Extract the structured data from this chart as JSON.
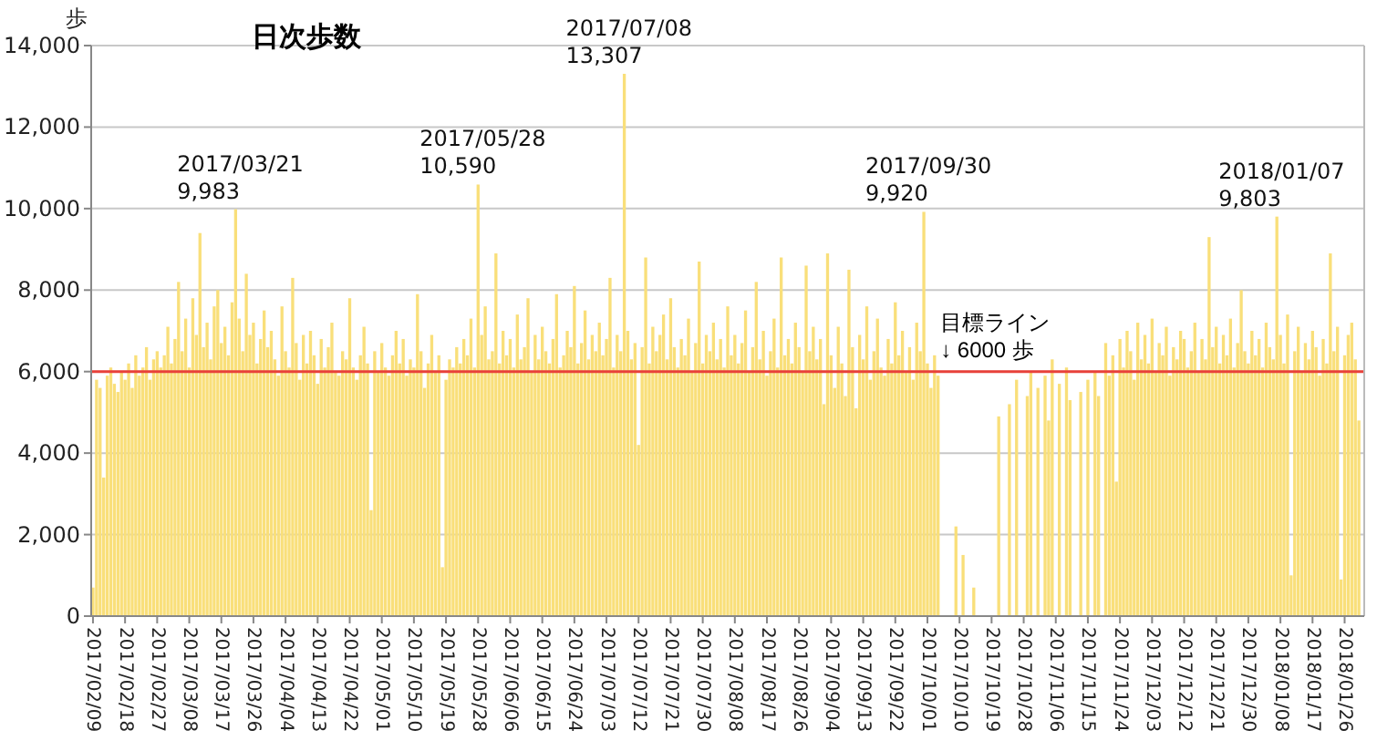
{
  "chart_data": {
    "type": "bar",
    "title": "日次歩数",
    "ylabel": "歩",
    "x": [
      "2017-02-09",
      "2017-02-10",
      "2017-02-11",
      "2017-02-12",
      "2017-02-13",
      "2017-02-14",
      "2017-02-15",
      "2017-02-16",
      "2017-02-17",
      "2017-02-18",
      "2017-02-19",
      "2017-02-20",
      "2017-02-21",
      "2017-02-22",
      "2017-02-23",
      "2017-02-24",
      "2017-02-25",
      "2017-02-26",
      "2017-02-27",
      "2017-02-28",
      "2017-03-01",
      "2017-03-02",
      "2017-03-03",
      "2017-03-04",
      "2017-03-05",
      "2017-03-06",
      "2017-03-07",
      "2017-03-08",
      "2017-03-09",
      "2017-03-10",
      "2017-03-11",
      "2017-03-12",
      "2017-03-13",
      "2017-03-14",
      "2017-03-15",
      "2017-03-16",
      "2017-03-17",
      "2017-03-18",
      "2017-03-19",
      "2017-03-20",
      "2017-03-21",
      "2017-03-22",
      "2017-03-23",
      "2017-03-24",
      "2017-03-25",
      "2017-03-26",
      "2017-03-27",
      "2017-03-28",
      "2017-03-29",
      "2017-03-30",
      "2017-03-31",
      "2017-04-01",
      "2017-04-02",
      "2017-04-03",
      "2017-04-04",
      "2017-04-05",
      "2017-04-06",
      "2017-04-07",
      "2017-04-08",
      "2017-04-09",
      "2017-04-10",
      "2017-04-11",
      "2017-04-12",
      "2017-04-13",
      "2017-04-14",
      "2017-04-15",
      "2017-04-16",
      "2017-04-17",
      "2017-04-18",
      "2017-04-19",
      "2017-04-20",
      "2017-04-21",
      "2017-04-22",
      "2017-04-23",
      "2017-04-24",
      "2017-04-25",
      "2017-04-26",
      "2017-04-27",
      "2017-04-28",
      "2017-04-29",
      "2017-04-30",
      "2017-05-01",
      "2017-05-02",
      "2017-05-03",
      "2017-05-04",
      "2017-05-05",
      "2017-05-06",
      "2017-05-07",
      "2017-05-08",
      "2017-05-09",
      "2017-05-10",
      "2017-05-11",
      "2017-05-12",
      "2017-05-13",
      "2017-05-14",
      "2017-05-15",
      "2017-05-16",
      "2017-05-17",
      "2017-05-18",
      "2017-05-19",
      "2017-05-20",
      "2017-05-21",
      "2017-05-22",
      "2017-05-23",
      "2017-05-24",
      "2017-05-25",
      "2017-05-26",
      "2017-05-27",
      "2017-05-28",
      "2017-05-29",
      "2017-05-30",
      "2017-05-31",
      "2017-06-01",
      "2017-06-02",
      "2017-06-03",
      "2017-06-04",
      "2017-06-05",
      "2017-06-06",
      "2017-06-07",
      "2017-06-08",
      "2017-06-09",
      "2017-06-10",
      "2017-06-11",
      "2017-06-12",
      "2017-06-13",
      "2017-06-14",
      "2017-06-15",
      "2017-06-16",
      "2017-06-17",
      "2017-06-18",
      "2017-06-19",
      "2017-06-20",
      "2017-06-21",
      "2017-06-22",
      "2017-06-23",
      "2017-06-24",
      "2017-06-25",
      "2017-06-26",
      "2017-06-27",
      "2017-06-28",
      "2017-06-29",
      "2017-06-30",
      "2017-07-01",
      "2017-07-02",
      "2017-07-03",
      "2017-07-04",
      "2017-07-05",
      "2017-07-06",
      "2017-07-07",
      "2017-07-08",
      "2017-07-09",
      "2017-07-10",
      "2017-07-11",
      "2017-07-12",
      "2017-07-13",
      "2017-07-14",
      "2017-07-15",
      "2017-07-16",
      "2017-07-17",
      "2017-07-18",
      "2017-07-19",
      "2017-07-20",
      "2017-07-21",
      "2017-07-22",
      "2017-07-23",
      "2017-07-24",
      "2017-07-25",
      "2017-07-26",
      "2017-07-27",
      "2017-07-28",
      "2017-07-29",
      "2017-07-30",
      "2017-07-31",
      "2017-08-01",
      "2017-08-02",
      "2017-08-03",
      "2017-08-04",
      "2017-08-05",
      "2017-08-06",
      "2017-08-07",
      "2017-08-08",
      "2017-08-09",
      "2017-08-10",
      "2017-08-11",
      "2017-08-12",
      "2017-08-13",
      "2017-08-14",
      "2017-08-15",
      "2017-08-16",
      "2017-08-17",
      "2017-08-18",
      "2017-08-19",
      "2017-08-20",
      "2017-08-21",
      "2017-08-22",
      "2017-08-23",
      "2017-08-24",
      "2017-08-25",
      "2017-08-26",
      "2017-08-27",
      "2017-08-28",
      "2017-08-29",
      "2017-08-30",
      "2017-08-31",
      "2017-09-01",
      "2017-09-02",
      "2017-09-03",
      "2017-09-04",
      "2017-09-05",
      "2017-09-06",
      "2017-09-07",
      "2017-09-08",
      "2017-09-09",
      "2017-09-10",
      "2017-09-11",
      "2017-09-12",
      "2017-09-13",
      "2017-09-14",
      "2017-09-15",
      "2017-09-16",
      "2017-09-17",
      "2017-09-18",
      "2017-09-19",
      "2017-09-20",
      "2017-09-21",
      "2017-09-22",
      "2017-09-23",
      "2017-09-24",
      "2017-09-25",
      "2017-09-26",
      "2017-09-27",
      "2017-09-28",
      "2017-09-29",
      "2017-09-30",
      "2017-10-01",
      "2017-10-02",
      "2017-10-03",
      "2017-10-04",
      "2017-10-05",
      "2017-10-06",
      "2017-10-07",
      "2017-10-08",
      "2017-10-09",
      "2017-10-10",
      "2017-10-11",
      "2017-10-12",
      "2017-10-13",
      "2017-10-14",
      "2017-10-15",
      "2017-10-16",
      "2017-10-17",
      "2017-10-18",
      "2017-10-19",
      "2017-10-20",
      "2017-10-21",
      "2017-10-22",
      "2017-10-23",
      "2017-10-24",
      "2017-10-25",
      "2017-10-26",
      "2017-10-27",
      "2017-10-28",
      "2017-10-29",
      "2017-10-30",
      "2017-10-31",
      "2017-11-01",
      "2017-11-02",
      "2017-11-03",
      "2017-11-04",
      "2017-11-05",
      "2017-11-06",
      "2017-11-07",
      "2017-11-08",
      "2017-11-09",
      "2017-11-10",
      "2017-11-11",
      "2017-11-12",
      "2017-11-13",
      "2017-11-14",
      "2017-11-15",
      "2017-11-16",
      "2017-11-17",
      "2017-11-18",
      "2017-11-19",
      "2017-11-20",
      "2017-11-21",
      "2017-11-22",
      "2017-11-23",
      "2017-11-24",
      "2017-11-25",
      "2017-11-26",
      "2017-11-27",
      "2017-11-28",
      "2017-11-29",
      "2017-11-30",
      "2017-12-01",
      "2017-12-02",
      "2017-12-03",
      "2017-12-04",
      "2017-12-05",
      "2017-12-06",
      "2017-12-07",
      "2017-12-08",
      "2017-12-09",
      "2017-12-10",
      "2017-12-11",
      "2017-12-12",
      "2017-12-13",
      "2017-12-14",
      "2017-12-15",
      "2017-12-16",
      "2017-12-17",
      "2017-12-18",
      "2017-12-19",
      "2017-12-20",
      "2017-12-21",
      "2017-12-22",
      "2017-12-23",
      "2017-12-24",
      "2017-12-25",
      "2017-12-26",
      "2017-12-27",
      "2017-12-28",
      "2017-12-29",
      "2017-12-30",
      "2017-12-31",
      "2018-01-01",
      "2018-01-02",
      "2018-01-03",
      "2018-01-04",
      "2018-01-05",
      "2018-01-06",
      "2018-01-07",
      "2018-01-08",
      "2018-01-09",
      "2018-01-10",
      "2018-01-11",
      "2018-01-12",
      "2018-01-13",
      "2018-01-14",
      "2018-01-15",
      "2018-01-16",
      "2018-01-17",
      "2018-01-18",
      "2018-01-19",
      "2018-01-20",
      "2018-01-21",
      "2018-01-22",
      "2018-01-23",
      "2018-01-24",
      "2018-01-25",
      "2018-01-26",
      "2018-01-27",
      "2018-01-28",
      "2018-01-29",
      "2018-01-30",
      "2018-01-31"
    ],
    "series": [
      {
        "color": "#f9df7a",
        "values": [
          700,
          5800,
          5600,
          3400,
          5900,
          6100,
          5700,
          5500,
          6000,
          5800,
          6200,
          5600,
          6400,
          5900,
          6100,
          6600,
          5800,
          6300,
          6500,
          6100,
          6400,
          7100,
          6200,
          6800,
          8200,
          6500,
          7300,
          6100,
          7800,
          6900,
          9400,
          6600,
          7200,
          6300,
          7600,
          8000,
          6700,
          7100,
          6400,
          7700,
          9983,
          7300,
          6500,
          8400,
          6900,
          7200,
          6200,
          6800,
          7500,
          6600,
          7000,
          6300,
          5900,
          7600,
          6500,
          6100,
          8300,
          6700,
          5800,
          6900,
          6200,
          7000,
          6400,
          5700,
          6800,
          6100,
          6600,
          7200,
          6000,
          5900,
          6500,
          6300,
          7800,
          6100,
          5800,
          6400,
          7100,
          6200,
          2600,
          6500,
          6000,
          6700,
          6100,
          5900,
          6400,
          7000,
          6200,
          6800,
          5900,
          6300,
          6100,
          7900,
          6500,
          5600,
          6200,
          6900,
          6000,
          6400,
          1200,
          5800,
          6300,
          6100,
          6600,
          6200,
          6800,
          6400,
          7300,
          6100,
          10590,
          6900,
          7600,
          6300,
          6500,
          8900,
          6200,
          7000,
          6400,
          6800,
          6100,
          7400,
          6300,
          6600,
          7800,
          6000,
          6900,
          6300,
          7100,
          6500,
          6200,
          6800,
          7900,
          6100,
          6400,
          7000,
          6600,
          8100,
          6200,
          6700,
          7500,
          6300,
          6900,
          6500,
          7200,
          6400,
          6800,
          8300,
          6100,
          6900,
          6500,
          13307,
          7000,
          6300,
          6700,
          4200,
          6600,
          8800,
          6200,
          7100,
          6500,
          6900,
          7400,
          6300,
          7800,
          6600,
          6100,
          6800,
          6400,
          7300,
          6000,
          6700,
          8700,
          6200,
          6900,
          6500,
          7200,
          6300,
          6800,
          6100,
          7600,
          6400,
          6900,
          6200,
          6700,
          7500,
          6000,
          6600,
          8200,
          6300,
          7000,
          5900,
          6500,
          7300,
          6100,
          8800,
          6400,
          6800,
          6200,
          7200,
          6600,
          6000,
          8600,
          6500,
          7100,
          6300,
          6800,
          5200,
          8900,
          6400,
          5600,
          7100,
          6200,
          5400,
          8500,
          6600,
          5100,
          6900,
          6300,
          7600,
          5800,
          6500,
          7300,
          6100,
          5900,
          6800,
          6200,
          7700,
          6400,
          7000,
          6000,
          6600,
          5800,
          7200,
          6500,
          9920,
          6200,
          5600,
          6400,
          5900,
          0,
          0,
          0,
          0,
          2200,
          0,
          1500,
          0,
          0,
          700,
          0,
          0,
          0,
          0,
          0,
          0,
          4900,
          0,
          0,
          5200,
          0,
          5800,
          0,
          0,
          5400,
          6000,
          0,
          5600,
          0,
          5900,
          4800,
          6300,
          0,
          5700,
          0,
          6100,
          5300,
          0,
          0,
          5500,
          0,
          5800,
          0,
          6000,
          5400,
          0,
          6700,
          5900,
          6400,
          3300,
          6800,
          6100,
          7000,
          6500,
          5800,
          7200,
          6300,
          6900,
          6200,
          7300,
          6000,
          6700,
          6400,
          7100,
          5900,
          6600,
          6300,
          7000,
          6800,
          6100,
          6500,
          7200,
          6000,
          6800,
          6300,
          9300,
          6600,
          7100,
          6200,
          6900,
          6400,
          7300,
          6100,
          6700,
          8000,
          6500,
          6200,
          7000,
          6400,
          6800,
          6100,
          7200,
          6600,
          6300,
          9803,
          6900,
          6200,
          7400,
          1000,
          6500,
          7100,
          6000,
          6700,
          6300,
          7000,
          6600,
          5900,
          6800,
          6200,
          8900,
          6500,
          7100,
          900,
          6400,
          6900,
          7200,
          6300,
          4800,
          0
        ]
      }
    ],
    "xlim": [
      "2017-02-08T12:00",
      "2018-01-31T12:00"
    ],
    "xticks": [
      {
        "value": "2017-02-09",
        "label": "2017/02/09"
      },
      {
        "value": "2017-02-18",
        "label": "2017/02/18"
      },
      {
        "value": "2017-02-27",
        "label": "2017/02/27"
      },
      {
        "value": "2017-03-08",
        "label": "2017/03/08"
      },
      {
        "value": "2017-03-17",
        "label": "2017/03/17"
      },
      {
        "value": "2017-03-26",
        "label": "2017/03/26"
      },
      {
        "value": "2017-04-04",
        "label": "2017/04/04"
      },
      {
        "value": "2017-04-13",
        "label": "2017/04/13"
      },
      {
        "value": "2017-04-22",
        "label": "2017/04/22"
      },
      {
        "value": "2017-05-01",
        "label": "2017/05/01"
      },
      {
        "value": "2017-05-10",
        "label": "2017/05/10"
      },
      {
        "value": "2017-05-19",
        "label": "2017/05/19"
      },
      {
        "value": "2017-05-28",
        "label": "2017/05/28"
      },
      {
        "value": "2017-06-06",
        "label": "2017/06/06"
      },
      {
        "value": "2017-06-15",
        "label": "2017/06/15"
      },
      {
        "value": "2017-06-24",
        "label": "2017/06/24"
      },
      {
        "value": "2017-07-03",
        "label": "2017/07/03"
      },
      {
        "value": "2017-07-12",
        "label": "2017/07/12"
      },
      {
        "value": "2017-07-21",
        "label": "2017/07/21"
      },
      {
        "value": "2017-07-30",
        "label": "2017/07/30"
      },
      {
        "value": "2017-08-08",
        "label": "2017/08/08"
      },
      {
        "value": "2017-08-17",
        "label": "2017/08/17"
      },
      {
        "value": "2017-08-26",
        "label": "2017/08/26"
      },
      {
        "value": "2017-09-04",
        "label": "2017/09/04"
      },
      {
        "value": "2017-09-13",
        "label": "2017/09/13"
      },
      {
        "value": "2017-09-22",
        "label": "2017/09/22"
      },
      {
        "value": "2017-10-01",
        "label": "2017/10/01"
      },
      {
        "value": "2017-10-10",
        "label": "2017/10/10"
      },
      {
        "value": "2017-10-19",
        "label": "2017/10/19"
      },
      {
        "value": "2017-10-28",
        "label": "2017/10/28"
      },
      {
        "value": "2017-11-06",
        "label": "2017/11/06"
      },
      {
        "value": "2017-11-15",
        "label": "2017/11/15"
      },
      {
        "value": "2017-11-24",
        "label": "2017/11/24"
      },
      {
        "value": "2017-12-03",
        "label": "2017/12/03"
      },
      {
        "value": "2017-12-12",
        "label": "2017/12/12"
      },
      {
        "value": "2017-12-21",
        "label": "2017/12/21"
      },
      {
        "value": "2017-12-30",
        "label": "2017/12/30"
      },
      {
        "value": "2018-01-08",
        "label": "2018/01/08"
      },
      {
        "value": "2018-01-17",
        "label": "2018/01/17"
      },
      {
        "value": "2018-01-26",
        "label": "2018/01/26"
      }
    ],
    "ylim": [
      0,
      14000
    ],
    "yticks": [
      0,
      {
        "value": 2000,
        "label": "2,000"
      },
      {
        "value": 4000,
        "label": "4,000"
      },
      {
        "value": 6000,
        "label": "6,000"
      },
      {
        "value": 8000,
        "label": "8,000"
      },
      {
        "value": 10000,
        "label": "10,000"
      },
      {
        "value": 12000,
        "label": "12,000"
      },
      {
        "value": 14000,
        "label": "14,000"
      }
    ],
    "grid": "y",
    "ref_lines": [
      {
        "axis": "y",
        "value": 6000,
        "label": "目標ライン\n↓  6000 歩",
        "color": "#e8413a"
      }
    ],
    "annotations": [
      {
        "text": "2017/03/21\n9,983",
        "x": "2017-03-21",
        "y": 9983
      },
      {
        "text": "2017/05/28\n10,590",
        "x": "2017-05-28",
        "y": 10590
      },
      {
        "text": "2017/07/08\n13,307",
        "x": "2017-07-08",
        "y": 13307
      },
      {
        "text": "2017/09/30\n9,920",
        "x": "2017-09-30",
        "y": 9920
      },
      {
        "text": "2018/01/07\n9,803",
        "x": "2018-01-07",
        "y": 9803
      }
    ]
  }
}
